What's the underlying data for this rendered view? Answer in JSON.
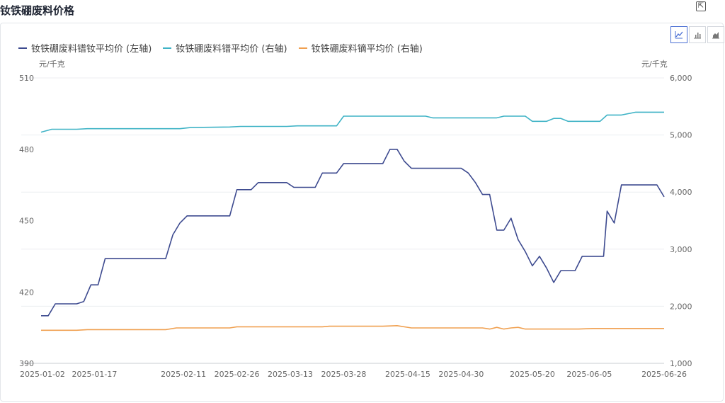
{
  "page": {
    "title": "钕铁硼废料价格",
    "export_icon": "export-icon"
  },
  "toolbar": {
    "views": [
      {
        "icon": "line-chart-icon",
        "active": true
      },
      {
        "icon": "bar-chart-icon",
        "active": false
      },
      {
        "icon": "area-chart-icon",
        "active": false
      }
    ]
  },
  "chart_data": {
    "type": "line",
    "left_unit": "元/千克",
    "right_unit": "元/千克",
    "y_left": {
      "ticks": [
        "510",
        "480",
        "450",
        "420",
        "390"
      ],
      "values": [
        510,
        480,
        450,
        420,
        390
      ],
      "range": [
        390,
        510
      ]
    },
    "y_right": {
      "ticks": [
        "6,000",
        "5,000",
        "4,000",
        "3,000",
        "2,000",
        "1,000"
      ],
      "values": [
        6000,
        5000,
        4000,
        3000,
        2000,
        1000
      ],
      "range": [
        1000,
        6000
      ]
    },
    "x_range": [
      "2025-01-02",
      "2025-06-26"
    ],
    "x_ticks": [
      "2025-01-02",
      "2025-01-17",
      "2025-02-11",
      "2025-02-26",
      "2025-03-13",
      "2025-03-28",
      "2025-04-15",
      "2025-04-30",
      "2025-05-20",
      "2025-06-05",
      "2025-06-26"
    ],
    "grid": true,
    "legend_position": "top-left",
    "series": [
      {
        "name": "钕铁硼废料镨钕平均价 (左轴)",
        "axis": "left",
        "color": "#3d4a8f",
        "points": [
          [
            "2025-01-02",
            410
          ],
          [
            "2025-01-04",
            410
          ],
          [
            "2025-01-06",
            415
          ],
          [
            "2025-01-12",
            415
          ],
          [
            "2025-01-14",
            416
          ],
          [
            "2025-01-16",
            423
          ],
          [
            "2025-01-18",
            423
          ],
          [
            "2025-01-20",
            434
          ],
          [
            "2025-02-06",
            434
          ],
          [
            "2025-02-08",
            444
          ],
          [
            "2025-02-10",
            449
          ],
          [
            "2025-02-12",
            452
          ],
          [
            "2025-02-24",
            452
          ],
          [
            "2025-02-26",
            463
          ],
          [
            "2025-03-02",
            463
          ],
          [
            "2025-03-04",
            466
          ],
          [
            "2025-03-12",
            466
          ],
          [
            "2025-03-14",
            464
          ],
          [
            "2025-03-20",
            464
          ],
          [
            "2025-03-22",
            470
          ],
          [
            "2025-03-26",
            470
          ],
          [
            "2025-03-28",
            474
          ],
          [
            "2025-04-08",
            474
          ],
          [
            "2025-04-10",
            480
          ],
          [
            "2025-04-12",
            480
          ],
          [
            "2025-04-14",
            475
          ],
          [
            "2025-04-16",
            472
          ],
          [
            "2025-04-30",
            472
          ],
          [
            "2025-05-02",
            470
          ],
          [
            "2025-05-04",
            466
          ],
          [
            "2025-05-06",
            461
          ],
          [
            "2025-05-08",
            461
          ],
          [
            "2025-05-10",
            446
          ],
          [
            "2025-05-12",
            446
          ],
          [
            "2025-05-14",
            451
          ],
          [
            "2025-05-16",
            442
          ],
          [
            "2025-05-18",
            437
          ],
          [
            "2025-05-20",
            431
          ],
          [
            "2025-05-22",
            435
          ],
          [
            "2025-05-24",
            430
          ],
          [
            "2025-05-26",
            424
          ],
          [
            "2025-05-28",
            429
          ],
          [
            "2025-06-01",
            429
          ],
          [
            "2025-06-03",
            435
          ],
          [
            "2025-06-09",
            435
          ],
          [
            "2025-06-10",
            454
          ],
          [
            "2025-06-12",
            449
          ],
          [
            "2025-06-14",
            465
          ],
          [
            "2025-06-24",
            465
          ],
          [
            "2025-06-26",
            460
          ]
        ]
      },
      {
        "name": "钕铁硼废料镨平均价 (右轴)",
        "axis": "right",
        "color": "#3fb3c6",
        "points": [
          [
            "2025-01-02",
            5050
          ],
          [
            "2025-01-05",
            5100
          ],
          [
            "2025-01-12",
            5100
          ],
          [
            "2025-01-15",
            5110
          ],
          [
            "2025-02-10",
            5110
          ],
          [
            "2025-02-13",
            5130
          ],
          [
            "2025-02-24",
            5140
          ],
          [
            "2025-02-27",
            5150
          ],
          [
            "2025-03-12",
            5150
          ],
          [
            "2025-03-15",
            5160
          ],
          [
            "2025-03-26",
            5160
          ],
          [
            "2025-03-28",
            5330
          ],
          [
            "2025-04-20",
            5330
          ],
          [
            "2025-04-22",
            5300
          ],
          [
            "2025-05-10",
            5300
          ],
          [
            "2025-05-12",
            5330
          ],
          [
            "2025-05-18",
            5330
          ],
          [
            "2025-05-20",
            5240
          ],
          [
            "2025-05-24",
            5240
          ],
          [
            "2025-05-26",
            5290
          ],
          [
            "2025-05-28",
            5290
          ],
          [
            "2025-05-30",
            5240
          ],
          [
            "2025-06-08",
            5240
          ],
          [
            "2025-06-10",
            5350
          ],
          [
            "2025-06-14",
            5350
          ],
          [
            "2025-06-18",
            5400
          ],
          [
            "2025-06-26",
            5400
          ]
        ]
      },
      {
        "name": "钕铁硼废料镝平均价 (右轴)",
        "axis": "right",
        "color": "#f0a050",
        "points": [
          [
            "2025-01-02",
            1580
          ],
          [
            "2025-01-12",
            1580
          ],
          [
            "2025-01-15",
            1590
          ],
          [
            "2025-02-06",
            1590
          ],
          [
            "2025-02-09",
            1620
          ],
          [
            "2025-02-24",
            1620
          ],
          [
            "2025-02-26",
            1640
          ],
          [
            "2025-03-22",
            1640
          ],
          [
            "2025-03-24",
            1650
          ],
          [
            "2025-04-08",
            1650
          ],
          [
            "2025-04-12",
            1660
          ],
          [
            "2025-04-16",
            1620
          ],
          [
            "2025-05-06",
            1620
          ],
          [
            "2025-05-08",
            1600
          ],
          [
            "2025-05-10",
            1630
          ],
          [
            "2025-05-12",
            1600
          ],
          [
            "2025-05-14",
            1620
          ],
          [
            "2025-05-16",
            1630
          ],
          [
            "2025-05-18",
            1600
          ],
          [
            "2025-06-02",
            1600
          ],
          [
            "2025-06-06",
            1610
          ],
          [
            "2025-06-26",
            1610
          ]
        ]
      }
    ]
  }
}
